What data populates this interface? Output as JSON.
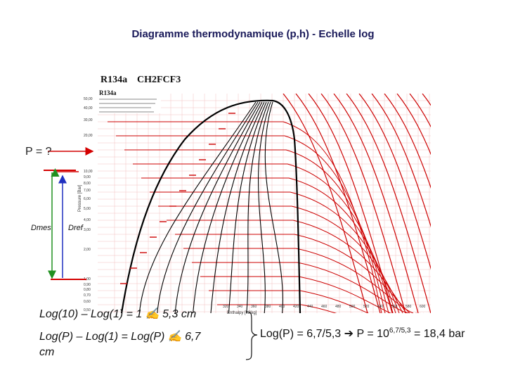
{
  "title": "Diagramme thermodynamique (p,h) - Echelle log",
  "chart": {
    "refrigerant": "R134a",
    "formula": "CH2FCF3",
    "subtitle": "R134a",
    "yaxis_label": "Pressure [Bar]",
    "xaxis_label": "Enthalpy [kJ/kg]",
    "pressure_ticks": [
      "50,00",
      "40,00",
      "30,00",
      "20,00",
      "10,00",
      "9,00",
      "8,00",
      "7,00",
      "6,00",
      "5,00",
      "4,00",
      "3,00",
      "2,00",
      "1,00",
      "0,90",
      "0,80",
      "0,70",
      "0,60",
      "0,50"
    ],
    "enthalpy_ticks": [
      "320",
      "340",
      "360",
      "380",
      "400",
      "420",
      "440",
      "460",
      "480",
      "500",
      "520",
      "540",
      "560",
      "580",
      "600"
    ]
  },
  "annotations": {
    "p_question": "P = ?",
    "d_mes": "Dmes",
    "d_ref": "Dref"
  },
  "equations": {
    "eq1": "Log(10) – Log(1) = 1 ✍ 5,3 cm",
    "eq2": "Log(P) – Log(1) = Log(P) ✍ 6,7",
    "eq2_cont": "cm",
    "result_prefix": "Log(P) = 6,7/5,3 ➔ P = 10",
    "result_exp": "6,7/5,3",
    "result_suffix": " = 18,4 bar"
  },
  "colors": {
    "saturation": "#000000",
    "isotherms": "#cc0000",
    "isentropes": "#cc0000",
    "grid": "#f2c0c0",
    "arrow_red": "#d40000",
    "arrow_blue": "#2030c0",
    "arrow_green": "#209020"
  }
}
